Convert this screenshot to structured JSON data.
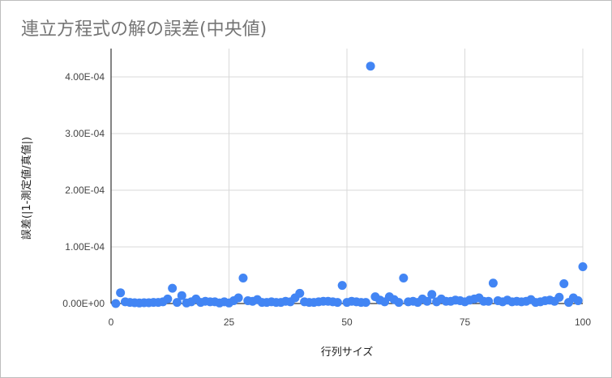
{
  "chart_data": {
    "type": "scatter",
    "title": "連立方程式の解の誤差(中央値)",
    "xlabel": "行列サイズ",
    "ylabel": "誤差(|1-測定値/真値|)",
    "xlim": [
      0,
      100
    ],
    "ylim": [
      0,
      0.00045
    ],
    "x_ticks": [
      "0",
      "25",
      "50",
      "75",
      "100"
    ],
    "y_ticks": [
      "0.00E+00",
      "1.00E-04",
      "2.00E-04",
      "3.00E-04",
      "4.00E-04"
    ],
    "grid": true,
    "legend": "none",
    "marker_color": "#4285f4",
    "x": [
      1,
      2,
      3,
      4,
      5,
      6,
      7,
      8,
      9,
      10,
      11,
      12,
      13,
      14,
      15,
      16,
      17,
      18,
      19,
      20,
      21,
      22,
      23,
      24,
      25,
      26,
      27,
      28,
      29,
      30,
      31,
      32,
      33,
      34,
      35,
      36,
      37,
      38,
      39,
      40,
      41,
      42,
      43,
      44,
      45,
      46,
      47,
      48,
      49,
      50,
      51,
      52,
      53,
      54,
      55,
      56,
      57,
      58,
      59,
      60,
      61,
      62,
      63,
      64,
      65,
      66,
      67,
      68,
      69,
      70,
      71,
      72,
      73,
      74,
      75,
      76,
      77,
      78,
      79,
      80,
      81,
      82,
      83,
      84,
      85,
      86,
      87,
      88,
      89,
      90,
      91,
      92,
      93,
      94,
      95,
      96,
      97,
      98,
      99,
      100
    ],
    "y": [
      0.0,
      1.9e-05,
      3e-06,
      2e-06,
      1.5e-06,
      1e-06,
      1.5e-06,
      1.5e-06,
      2e-06,
      2e-06,
      3e-06,
      8e-06,
      2.7e-05,
      2e-06,
      1.4e-05,
      1e-06,
      3e-06,
      8e-06,
      2e-06,
      4e-06,
      3e-06,
      3e-06,
      1e-06,
      3e-06,
      1e-06,
      5e-06,
      1e-05,
      4.5e-05,
      5e-06,
      4e-06,
      7e-06,
      2e-06,
      2e-06,
      3e-06,
      2e-06,
      2e-06,
      4e-06,
      3e-06,
      1e-05,
      1.8e-05,
      3e-06,
      2e-06,
      2e-06,
      3e-06,
      4e-06,
      4e-06,
      3e-06,
      2e-06,
      3.2e-05,
      2e-06,
      4e-06,
      3e-06,
      2e-06,
      2e-06,
      0.000419,
      1.2e-05,
      6e-06,
      3e-06,
      1.2e-05,
      7e-06,
      2e-06,
      4.5e-05,
      3e-06,
      4e-06,
      2e-06,
      8e-06,
      4e-06,
      1.6e-05,
      3e-06,
      8e-06,
      4e-06,
      4e-06,
      6e-06,
      5e-06,
      3e-06,
      6e-06,
      8e-06,
      1e-05,
      4e-06,
      4e-06,
      3.6e-05,
      5e-06,
      3e-06,
      6e-06,
      3e-06,
      4e-06,
      3e-06,
      4e-06,
      7e-06,
      2e-06,
      3e-06,
      5e-06,
      6e-06,
      4e-06,
      1.1e-05,
      3.5e-05,
      2e-06,
      1e-05,
      5e-06,
      6.5e-05
    ]
  }
}
